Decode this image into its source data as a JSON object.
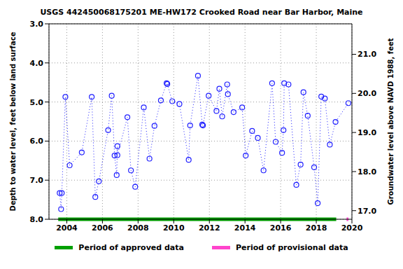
{
  "chart_data": {
    "type": "line",
    "title": "USGS 442450068175201 ME-HW172 Crooked Road near Bar Harbor, Maine",
    "y_label": "Depth to water level, feet below land surface",
    "y2_label": "Groundwater level above NAVD 1988, feet",
    "x": [
      2003.6,
      2003.68,
      2003.72,
      2003.92,
      2004.16,
      2004.84,
      2005.4,
      2005.6,
      2005.8,
      2006.32,
      2006.52,
      2006.68,
      2006.8,
      2006.84,
      2006.84,
      2007.4,
      2007.6,
      2007.84,
      2008.32,
      2008.64,
      2008.92,
      2009.28,
      2009.6,
      2009.64,
      2009.92,
      2010.32,
      2010.84,
      2010.92,
      2011.36,
      2011.6,
      2011.64,
      2011.96,
      2012.4,
      2012.56,
      2012.72,
      2013.0,
      2013.04,
      2013.36,
      2013.84,
      2014.04,
      2014.4,
      2014.72,
      2015.04,
      2015.52,
      2015.72,
      2016.08,
      2016.16,
      2016.2,
      2016.44,
      2016.88,
      2017.12,
      2017.28,
      2017.52,
      2017.88,
      2018.08,
      2018.28,
      2018.48,
      2018.76,
      2019.08,
      2019.8
    ],
    "values": [
      7.33,
      7.74,
      7.33,
      4.87,
      6.62,
      6.29,
      4.87,
      7.43,
      7.03,
      5.72,
      4.84,
      6.37,
      6.87,
      6.13,
      6.36,
      5.39,
      6.75,
      7.17,
      5.14,
      6.45,
      5.61,
      4.96,
      4.52,
      4.54,
      4.98,
      5.05,
      6.48,
      5.6,
      4.33,
      5.58,
      5.6,
      4.84,
      5.23,
      4.66,
      5.37,
      4.55,
      4.8,
      5.26,
      5.14,
      6.37,
      5.74,
      5.92,
      6.75,
      4.52,
      6.02,
      6.3,
      5.72,
      4.52,
      4.55,
      7.12,
      6.6,
      4.75,
      5.35,
      6.67,
      7.59,
      4.86,
      4.91,
      6.09,
      5.51,
      5.03
    ],
    "color": "#2020ff",
    "marker": "circle_open",
    "line_style": "dotted",
    "xlim": [
      2003,
      2020
    ],
    "xticks": [
      2004,
      2006,
      2008,
      2010,
      2012,
      2014,
      2016,
      2018,
      2020
    ],
    "ylim": [
      3,
      8
    ],
    "yticks": [
      {
        "value": 3,
        "label": "3.0"
      },
      {
        "value": 4,
        "label": "4.0"
      },
      {
        "value": 5,
        "label": "5.0"
      },
      {
        "value": 6,
        "label": "6.0"
      },
      {
        "value": 7,
        "label": "7.0"
      },
      {
        "value": 8,
        "label": "8.0"
      }
    ],
    "y2lim": [
      16.78,
      21.78
    ],
    "y2ticks": [
      {
        "value": 17,
        "label": "17.0"
      },
      {
        "value": 18,
        "label": "18.0"
      },
      {
        "value": 19,
        "label": "19.0"
      },
      {
        "value": 20,
        "label": "20.0"
      },
      {
        "value": 21,
        "label": "21.0"
      }
    ],
    "grid": true,
    "periods": [
      {
        "name": "Period of approved data",
        "color": "#00a000",
        "start": 2003.52,
        "end": 2019.12
      },
      {
        "name": "Period of provisional data",
        "color": "#ff44cc",
        "start": 2019.7,
        "end": 2019.8
      }
    ]
  }
}
